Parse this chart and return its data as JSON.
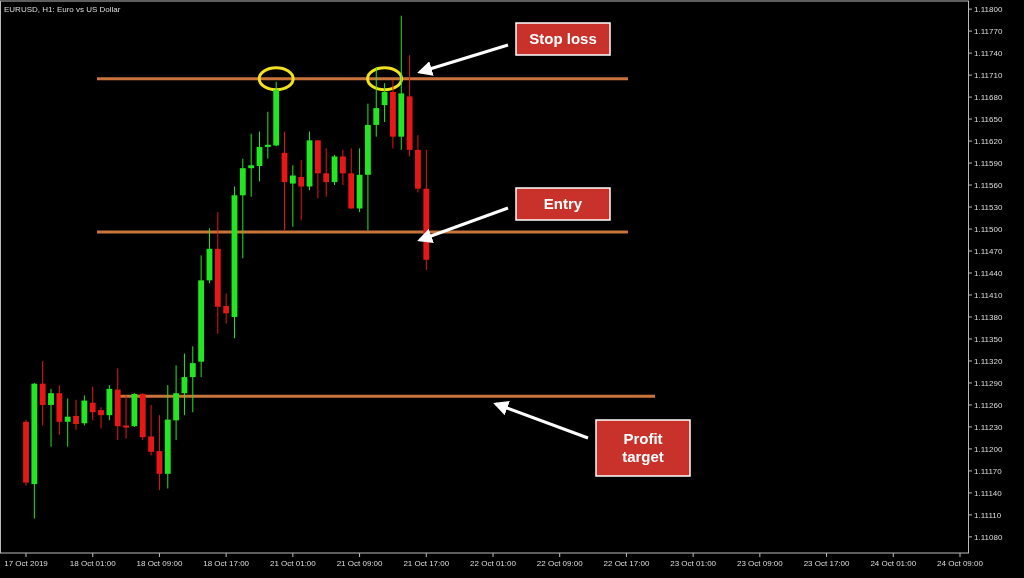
{
  "chart_data": {
    "type": "candlestick",
    "title": "EURUSD, H1:  Euro vs US Dollar",
    "categories": [
      "17 Oct 2019",
      null,
      null,
      null,
      null,
      null,
      null,
      null,
      "18 Oct 01:00",
      null,
      null,
      null,
      null,
      null,
      null,
      null,
      "18 Oct 09:00",
      null,
      null,
      null,
      null,
      null,
      null,
      null,
      "18 Oct 17:00",
      null,
      null,
      null,
      null,
      null,
      null,
      null,
      "21 Oct 01:00",
      null,
      null,
      null,
      null,
      null,
      null,
      null,
      "21 Oct 09:00",
      null,
      null,
      null,
      null,
      null,
      null,
      null,
      "21 Oct 17:00",
      null,
      null,
      null,
      null,
      null,
      null,
      null,
      "22 Oct 01:00",
      null,
      null,
      null,
      null,
      null,
      null,
      null,
      "22 Oct 09:00",
      null,
      null,
      null,
      null,
      null,
      null,
      null,
      "22 Oct 17:00",
      null,
      null,
      null,
      null,
      null,
      null,
      null,
      "23 Oct 01:00",
      null,
      null,
      null,
      null,
      null,
      null,
      null,
      "23 Oct 09:00",
      null,
      null,
      null,
      null,
      null,
      null,
      null,
      "23 Oct 17:00",
      null,
      null,
      null,
      null,
      null,
      null,
      null,
      "24 Oct 01:00",
      null,
      null,
      null,
      null,
      null,
      null,
      null,
      "24 Oct 09:00"
    ],
    "ohlc": [
      [
        1.11237,
        1.1124,
        1.1115,
        1.11154
      ],
      [
        1.11152,
        1.1129,
        1.11105,
        1.11289
      ],
      [
        1.11289,
        1.1132,
        1.11232,
        1.1126
      ],
      [
        1.1126,
        1.11282,
        1.11203,
        1.11276
      ],
      [
        1.11276,
        1.11287,
        1.11219,
        1.11237
      ],
      [
        1.11237,
        1.11269,
        1.11203,
        1.11244
      ],
      [
        1.11245,
        1.11267,
        1.11226,
        1.11234
      ],
      [
        1.11235,
        1.11273,
        1.11232,
        1.11266
      ],
      [
        1.11263,
        1.11285,
        1.11239,
        1.1125
      ],
      [
        1.11253,
        1.11257,
        1.11228,
        1.11246
      ],
      [
        1.11246,
        1.11287,
        1.11239,
        1.11282
      ],
      [
        1.11281,
        1.1131,
        1.11212,
        1.11231
      ],
      [
        1.11232,
        1.11273,
        1.11214,
        1.11229
      ],
      [
        1.11231,
        1.11276,
        1.1123,
        1.11275
      ],
      [
        1.11275,
        1.11276,
        1.11212,
        1.11216
      ],
      [
        1.11217,
        1.1126,
        1.11191,
        1.11196
      ],
      [
        1.11197,
        1.11246,
        1.11144,
        1.11166
      ],
      [
        1.11166,
        1.11287,
        1.11146,
        1.1124
      ],
      [
        1.11239,
        1.11314,
        1.11212,
        1.11276
      ],
      [
        1.11276,
        1.1133,
        1.11246,
        1.11298
      ],
      [
        1.11298,
        1.1134,
        1.1125,
        1.11317
      ],
      [
        1.11319,
        1.11464,
        1.11298,
        1.1143
      ],
      [
        1.1143,
        1.11501,
        1.11426,
        1.11473
      ],
      [
        1.11473,
        1.11523,
        1.11357,
        1.11394
      ],
      [
        1.11395,
        1.11412,
        1.11371,
        1.11385
      ],
      [
        1.1138,
        1.11558,
        1.11351,
        1.11546
      ],
      [
        1.11546,
        1.11596,
        1.1146,
        1.11583
      ],
      [
        1.11583,
        1.1163,
        1.11544,
        1.11587
      ],
      [
        1.11586,
        1.11633,
        1.11565,
        1.11612
      ],
      [
        1.11612,
        1.1166,
        1.11596,
        1.11615
      ],
      [
        1.11614,
        1.11701,
        1.11613,
        1.1169
      ],
      [
        1.11604,
        1.11633,
        1.11498,
        1.11564
      ],
      [
        1.11562,
        1.11587,
        1.11503,
        1.11573
      ],
      [
        1.11571,
        1.11594,
        1.11512,
        1.11558
      ],
      [
        1.11558,
        1.11633,
        1.11553,
        1.11621
      ],
      [
        1.11621,
        1.11621,
        1.11542,
        1.11576
      ],
      [
        1.11576,
        1.1161,
        1.11544,
        1.11564
      ],
      [
        1.11564,
        1.11601,
        1.1156,
        1.11599
      ],
      [
        1.11599,
        1.11608,
        1.1156,
        1.11576
      ],
      [
        1.11576,
        1.1161,
        1.11528,
        1.11528
      ],
      [
        1.11528,
        1.1161,
        1.11523,
        1.11574
      ],
      [
        1.11574,
        1.11671,
        1.11498,
        1.11642
      ],
      [
        1.11642,
        1.11721,
        1.11626,
        1.11665
      ],
      [
        1.11669,
        1.11699,
        1.11646,
        1.11687
      ],
      [
        1.11687,
        1.11703,
        1.1161,
        1.11626
      ],
      [
        1.11626,
        1.11791,
        1.11608,
        1.11685
      ],
      [
        1.11681,
        1.11737,
        1.11599,
        1.11608
      ],
      [
        1.11608,
        1.11628,
        1.1155,
        1.11555
      ],
      [
        1.11555,
        1.11608,
        1.11444,
        1.11458
      ],
      null,
      null,
      null,
      null,
      null,
      null,
      null,
      null,
      null,
      null,
      null,
      null,
      null,
      null,
      null,
      null,
      null,
      null,
      null,
      null,
      null,
      null,
      null,
      null,
      null,
      null,
      null,
      null,
      null,
      null,
      null,
      null,
      null,
      null,
      null,
      null,
      null,
      null,
      null,
      null,
      null,
      null,
      null,
      null,
      null,
      null,
      null,
      null,
      null,
      null,
      null,
      null,
      null,
      null,
      null,
      null,
      null,
      null,
      null,
      null,
      null,
      null,
      null,
      null
    ],
    "colors": [
      "#e61717",
      "#22e622",
      "#e61717",
      "#22e622",
      "#e61717",
      "#22e622",
      "#e61717",
      "#22e622",
      "#e61717",
      "#e61717",
      "#22e622",
      "#e61717",
      "#e61717",
      "#22e622",
      "#e61717",
      "#e61717",
      "#e61717",
      "#22e622",
      "#22e622",
      "#22e622",
      "#22e622",
      "#22e622",
      "#22e622",
      "#e61717",
      "#e61717",
      "#22e622",
      "#22e622",
      "#22e622",
      "#22e622",
      "#22e622",
      "#22e622",
      "#e61717",
      "#22e622",
      "#e61717",
      "#22e622",
      "#e61717",
      "#e61717",
      "#22e622",
      "#e61717",
      "#e61717",
      "#22e622",
      "#22e622",
      "#22e622",
      "#22e622",
      "#e61717",
      "#22e622",
      "#e61717",
      "#e61717",
      "#e61717",
      null,
      null,
      null,
      null,
      null,
      null,
      null,
      null,
      null,
      null,
      null,
      null,
      null,
      null,
      null,
      null,
      null,
      null,
      null,
      null,
      null,
      null,
      null,
      null,
      null,
      null,
      null,
      null,
      null,
      null,
      null,
      null,
      null,
      null,
      null,
      null,
      null,
      null,
      null,
      null,
      null,
      null,
      null,
      null,
      null,
      null,
      null,
      null,
      null,
      null,
      null,
      null,
      null,
      null,
      null,
      null,
      null,
      null,
      null,
      null,
      null,
      null,
      null,
      null
    ],
    "ylim": [
      1.11058,
      1.11807
    ],
    "yticks": [
      {
        "value": 1.1108,
        "label": "1.11080"
      },
      {
        "value": 1.1111,
        "label": "1.11110"
      },
      {
        "value": 1.1114,
        "label": "1.11140"
      },
      {
        "value": 1.1117,
        "label": "1.11170"
      },
      {
        "value": 1.112,
        "label": "1.11200"
      },
      {
        "value": 1.1123,
        "label": "1.11230"
      },
      {
        "value": 1.1126,
        "label": "1.11260"
      },
      {
        "value": 1.1129,
        "label": "1.11290"
      },
      {
        "value": 1.1132,
        "label": "1.11320"
      },
      {
        "value": 1.1135,
        "label": "1.11350"
      },
      {
        "value": 1.1138,
        "label": "1.11380"
      },
      {
        "value": 1.1141,
        "label": "1.11410"
      },
      {
        "value": 1.1144,
        "label": "1.11440"
      },
      {
        "value": 1.1147,
        "label": "1.11470"
      },
      {
        "value": 1.115,
        "label": "1.11500"
      },
      {
        "value": 1.1153,
        "label": "1.11530"
      },
      {
        "value": 1.1156,
        "label": "1.11560"
      },
      {
        "value": 1.1159,
        "label": "1.11590"
      },
      {
        "value": 1.1162,
        "label": "1.11620"
      },
      {
        "value": 1.1165,
        "label": "1.11650"
      },
      {
        "value": 1.1168,
        "label": "1.11680"
      },
      {
        "value": 1.1171,
        "label": "1.11710"
      },
      {
        "value": 1.1174,
        "label": "1.11740"
      },
      {
        "value": 1.1177,
        "label": "1.11770"
      },
      {
        "value": 1.118,
        "label": "1.11800"
      }
    ],
    "ref_lines": [
      {
        "axis": "y",
        "value": 1.11705,
        "label": "Stop loss",
        "color": "#c8743c"
      },
      {
        "axis": "y",
        "value": 1.11496,
        "label": "Entry",
        "color": "#c8743c"
      },
      {
        "axis": "y",
        "value": 1.11272,
        "label": "Profit target",
        "color": "#c8743c"
      }
    ]
  }
}
